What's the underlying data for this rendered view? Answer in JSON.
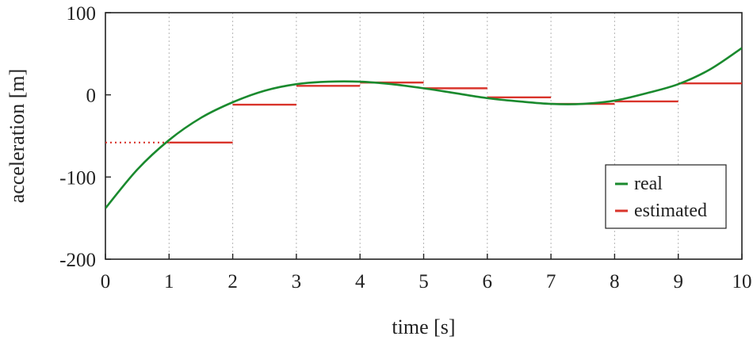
{
  "chart_data": {
    "type": "line",
    "title": "",
    "xlabel": "time [s]",
    "ylabel": "acceleration [m]",
    "xlim": [
      0,
      10
    ],
    "ylim": [
      -200,
      100
    ],
    "x_ticks": [
      0,
      1,
      2,
      3,
      4,
      5,
      6,
      7,
      8,
      9,
      10
    ],
    "y_ticks": [
      100,
      0,
      -100,
      -200
    ],
    "grid": {
      "vertical": true,
      "horizontal": false
    },
    "legend_position": "bottom-right",
    "series": [
      {
        "name": "real",
        "style": "line",
        "color": "#1a8a2e",
        "x": [
          0,
          0.5,
          1,
          1.5,
          2,
          2.5,
          3,
          3.5,
          4,
          4.5,
          5,
          5.5,
          6,
          6.5,
          7,
          7.5,
          8,
          8.5,
          9,
          9.5,
          10
        ],
        "y": [
          -138,
          -91,
          -55,
          -28,
          -9,
          5,
          13,
          16,
          16,
          13,
          8,
          2,
          -4,
          -8,
          -11,
          -11,
          -7,
          2,
          13,
          31,
          57
        ]
      },
      {
        "name": "estimated",
        "style": "step",
        "color": "#d9342b",
        "segments": [
          {
            "x0": 1,
            "x1": 2,
            "y": -58
          },
          {
            "x0": 2,
            "x1": 3,
            "y": -12
          },
          {
            "x0": 3,
            "x1": 4,
            "y": 11
          },
          {
            "x0": 4,
            "x1": 5,
            "y": 15
          },
          {
            "x0": 5,
            "x1": 6,
            "y": 8
          },
          {
            "x0": 6,
            "x1": 7,
            "y": -3
          },
          {
            "x0": 7,
            "x1": 8,
            "y": -11
          },
          {
            "x0": 8,
            "x1": 9,
            "y": -8
          },
          {
            "x0": 9,
            "x1": 10,
            "y": 14
          }
        ],
        "dotted_segment": {
          "x0": 0,
          "x1": 1,
          "y": -58
        }
      }
    ]
  }
}
